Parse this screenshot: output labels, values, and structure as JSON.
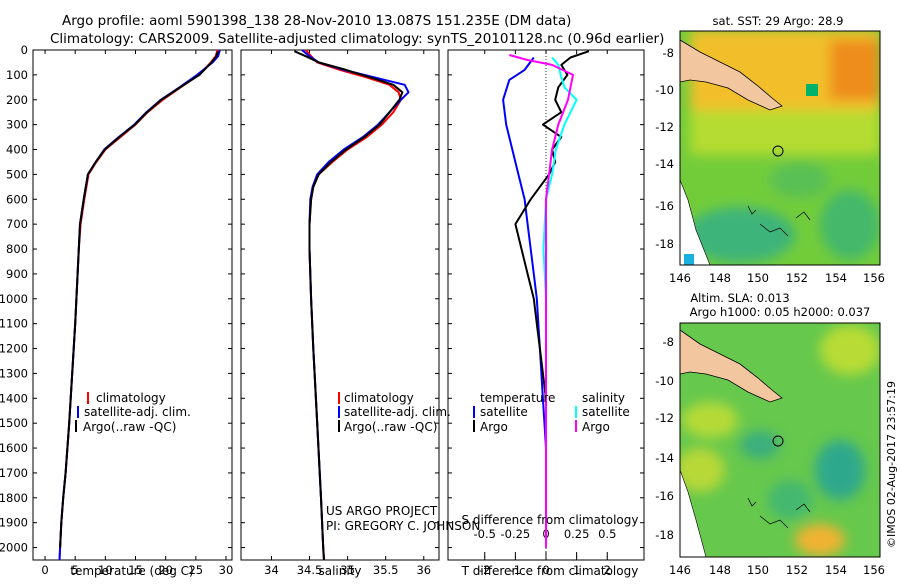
{
  "header": {
    "line1": "Argo profile: aoml 5901398_138 28-Nov-2010 13.087S 151.235E (DM data)",
    "line2": "Climatology: CARS2009. Satellite-adjusted climatology: synTS_20101128.nc (0.96d earlier)"
  },
  "colors": {
    "climatology": "#ff0000",
    "satellite": "#0000ff",
    "argo": "#000000",
    "sal_satellite": "#00ffff",
    "sal_argo": "#ff00ff"
  },
  "depth_axis": {
    "ticks": [
      0,
      100,
      200,
      300,
      400,
      500,
      600,
      700,
      800,
      900,
      1000,
      1100,
      1200,
      1300,
      1400,
      1500,
      1600,
      1700,
      1800,
      1900,
      2000
    ],
    "labels": [
      "0",
      "100",
      "200",
      "300",
      "400",
      "500",
      "600",
      "700",
      "800",
      "900",
      "1000",
      "1100",
      "1200",
      "1300",
      "1400",
      "1500",
      "1600",
      "1700",
      "1800",
      "1900",
      "2000"
    ]
  },
  "chart_data": [
    {
      "type": "line",
      "title": "temperature profile",
      "xlabel": "temperature (deg C)",
      "xlim": [
        -2,
        31
      ],
      "ylim": [
        0,
        2050
      ],
      "xticks": [
        0,
        5,
        10,
        15,
        20,
        25,
        30
      ],
      "xtick_labels": [
        "0",
        "5",
        "10",
        "15",
        "20",
        "25",
        "30"
      ],
      "legend": [
        "climatology",
        "satellite-adj. clim.",
        "Argo(..raw -QC)"
      ],
      "series": [
        {
          "name": "climatology",
          "color": "#ff0000",
          "x": [
            28.6,
            28.3,
            27.5,
            25.5,
            22.5,
            19.5,
            17,
            15,
            12.5,
            10,
            8.5,
            7.2,
            6.5,
            5.9,
            5.6,
            5.4,
            5.2,
            5.0,
            4.5,
            4.0,
            3.4,
            3.0,
            2.7,
            2.5,
            2.4
          ],
          "y": [
            0,
            25,
            50,
            100,
            150,
            200,
            250,
            300,
            350,
            400,
            450,
            500,
            600,
            700,
            800,
            900,
            1000,
            1100,
            1300,
            1500,
            1700,
            1800,
            1900,
            2000,
            2050
          ]
        },
        {
          "name": "satellite-adj. clim.",
          "color": "#0000ff",
          "x": [
            29.0,
            28.7,
            27.8,
            25.2,
            22.3,
            19.2,
            16.8,
            14.8,
            12.2,
            9.8,
            8.4,
            7.1,
            6.4,
            5.8,
            5.6,
            5.4,
            5.2,
            5.0,
            4.5,
            4.0,
            3.4,
            3.0,
            2.7,
            2.5,
            2.4
          ],
          "y": [
            0,
            25,
            50,
            100,
            150,
            200,
            250,
            300,
            350,
            400,
            450,
            500,
            600,
            700,
            800,
            900,
            1000,
            1100,
            1300,
            1500,
            1700,
            1800,
            1900,
            2000,
            2050
          ]
        },
        {
          "name": "Argo",
          "color": "#000000",
          "x": [
            28.7,
            28.4,
            27.6,
            25.6,
            22.4,
            19.3,
            16.9,
            14.9,
            12.3,
            9.9,
            8.4,
            7.1,
            6.4,
            5.8,
            5.6,
            5.4,
            5.2,
            5.0,
            4.5,
            4.0,
            3.4,
            3.0,
            2.7,
            2.5
          ],
          "y": [
            5,
            25,
            50,
            100,
            150,
            200,
            250,
            300,
            350,
            400,
            450,
            500,
            600,
            700,
            800,
            900,
            1000,
            1100,
            1300,
            1500,
            1700,
            1800,
            1900,
            2000
          ]
        }
      ]
    },
    {
      "type": "line",
      "title": "salinity profile",
      "xlabel": "salinity",
      "xlim": [
        33.6,
        36.2
      ],
      "ylim": [
        0,
        2050
      ],
      "xticks": [
        34,
        34.5,
        35,
        35.5,
        36
      ],
      "xtick_labels": [
        "34",
        "34.5",
        "35",
        "35.5",
        "36"
      ],
      "legend": [
        "climatology",
        "satellite-adj. clim.",
        "Argo(..raw -QC)"
      ],
      "series": [
        {
          "name": "climatology",
          "color": "#ff0000",
          "x": [
            34.45,
            34.52,
            34.6,
            34.9,
            35.25,
            35.55,
            35.67,
            35.7,
            35.6,
            35.45,
            35.25,
            35.0,
            34.8,
            34.62,
            34.55,
            34.52,
            34.5,
            34.5,
            34.52,
            34.55,
            34.6,
            34.65,
            34.68,
            34.69
          ],
          "y": [
            0,
            25,
            50,
            80,
            110,
            140,
            170,
            200,
            250,
            300,
            350,
            400,
            450,
            500,
            550,
            600,
            700,
            800,
            1000,
            1200,
            1500,
            1800,
            2000,
            2050
          ]
        },
        {
          "name": "satellite-adj. clim.",
          "color": "#0000ff",
          "x": [
            34.4,
            34.5,
            34.62,
            34.95,
            35.35,
            35.75,
            35.8,
            35.7,
            35.55,
            35.4,
            35.2,
            34.95,
            34.75,
            34.6,
            34.54,
            34.51,
            34.5,
            34.5,
            34.52,
            34.55,
            34.6,
            34.65,
            34.68,
            34.69
          ],
          "y": [
            0,
            25,
            50,
            80,
            110,
            140,
            170,
            200,
            250,
            300,
            350,
            400,
            450,
            500,
            550,
            600,
            700,
            800,
            1000,
            1200,
            1500,
            1800,
            2000,
            2050
          ]
        },
        {
          "name": "Argo",
          "color": "#000000",
          "x": [
            34.3,
            34.45,
            34.62,
            34.98,
            35.3,
            35.6,
            35.72,
            35.68,
            35.55,
            35.42,
            35.22,
            34.98,
            34.78,
            34.62,
            34.55,
            34.52,
            34.5,
            34.5,
            34.52,
            34.55,
            34.6,
            34.65,
            34.68,
            34.69
          ],
          "y": [
            5,
            25,
            50,
            80,
            110,
            140,
            170,
            200,
            250,
            300,
            350,
            400,
            450,
            500,
            550,
            600,
            700,
            800,
            1000,
            1200,
            1500,
            1800,
            2000,
            2050
          ]
        }
      ]
    },
    {
      "type": "line",
      "title": "difference from climatology",
      "xlabel": "T difference from climatology",
      "xlabel_top": "S difference from climatology",
      "xlim": [
        -3.2,
        3.2
      ],
      "ylim": [
        0,
        2050
      ],
      "xticks": [
        -2,
        -1,
        0,
        1,
        2
      ],
      "xtick_labels": [
        "-2",
        "-1",
        "0",
        "1",
        "2"
      ],
      "s_ticks": [
        -0.5,
        -0.25,
        0,
        0.25,
        0.5
      ],
      "s_tick_labels": [
        "-0.5",
        "-0.25",
        "0",
        "0.25",
        "0.5"
      ],
      "s_per_t": 0.25,
      "legend": {
        "temperature_header": "temperature",
        "salinity_header": "salinity",
        "items": [
          "satellite",
          "Argo",
          "satellite",
          "Argo"
        ]
      },
      "series": [
        {
          "name": "T satellite",
          "color": "#0000ff",
          "x": [
            -0.4,
            -0.7,
            -1.2,
            -1.4,
            -1.3,
            -1.1,
            -0.9,
            -0.7,
            -0.6,
            -0.5,
            -0.4,
            -0.3,
            -0.2,
            -0.1,
            0,
            0
          ],
          "y": [
            30,
            80,
            120,
            200,
            300,
            400,
            500,
            600,
            700,
            800,
            900,
            1000,
            1200,
            1400,
            1600,
            2000
          ]
        },
        {
          "name": "T Argo",
          "color": "#000000",
          "x": [
            1.4,
            0.8,
            0.5,
            0.7,
            0.4,
            0.3,
            0.5,
            -0.1,
            0.5,
            0.2,
            0.3,
            0.1,
            -0.2,
            -0.5,
            -1.0,
            -0.8,
            -0.6,
            -0.4,
            -0.3,
            -0.2,
            -0.1,
            0,
            0,
            0
          ],
          "y": [
            5,
            30,
            60,
            100,
            150,
            200,
            250,
            300,
            350,
            400,
            450,
            500,
            550,
            600,
            700,
            800,
            900,
            1000,
            1100,
            1200,
            1300,
            1400,
            1700,
            2000
          ]
        },
        {
          "name": "S satellite",
          "color": "#00ffff",
          "x": [
            0.05,
            0.1,
            0.12,
            0.15,
            0.25,
            0.15,
            0.08,
            0.05,
            0,
            -0.02,
            0,
            0,
            0
          ],
          "y": [
            30,
            60,
            100,
            150,
            200,
            300,
            400,
            500,
            600,
            800,
            1000,
            1500,
            2000
          ]
        },
        {
          "name": "S Argo",
          "color": "#ff00ff",
          "x": [
            -0.3,
            -0.15,
            0.05,
            0.22,
            0.2,
            0.18,
            0.1,
            0.05,
            0,
            0,
            0
          ],
          "y": [
            20,
            40,
            60,
            100,
            150,
            200,
            300,
            400,
            600,
            1000,
            2000
          ]
        }
      ]
    }
  ],
  "maps": {
    "top": {
      "title": "sat. SST: 29 Argo: 28.9"
    },
    "bottom": {
      "title1": "Altim. SLA: 0.013",
      "title2": "Argo h1000: 0.05 h2000: 0.037"
    },
    "lon_labels": [
      "146",
      "148",
      "150",
      "152",
      "154",
      "156"
    ],
    "lat_labels": [
      "-8",
      "-10",
      "-12",
      "-14",
      "-16",
      "-18"
    ]
  },
  "annotations": {
    "project": "US ARGO PROJECT",
    "pi": "PI: GREGORY C. JOHNSON",
    "credit": "©IMOS 02-Aug-2017 23:57:19"
  }
}
